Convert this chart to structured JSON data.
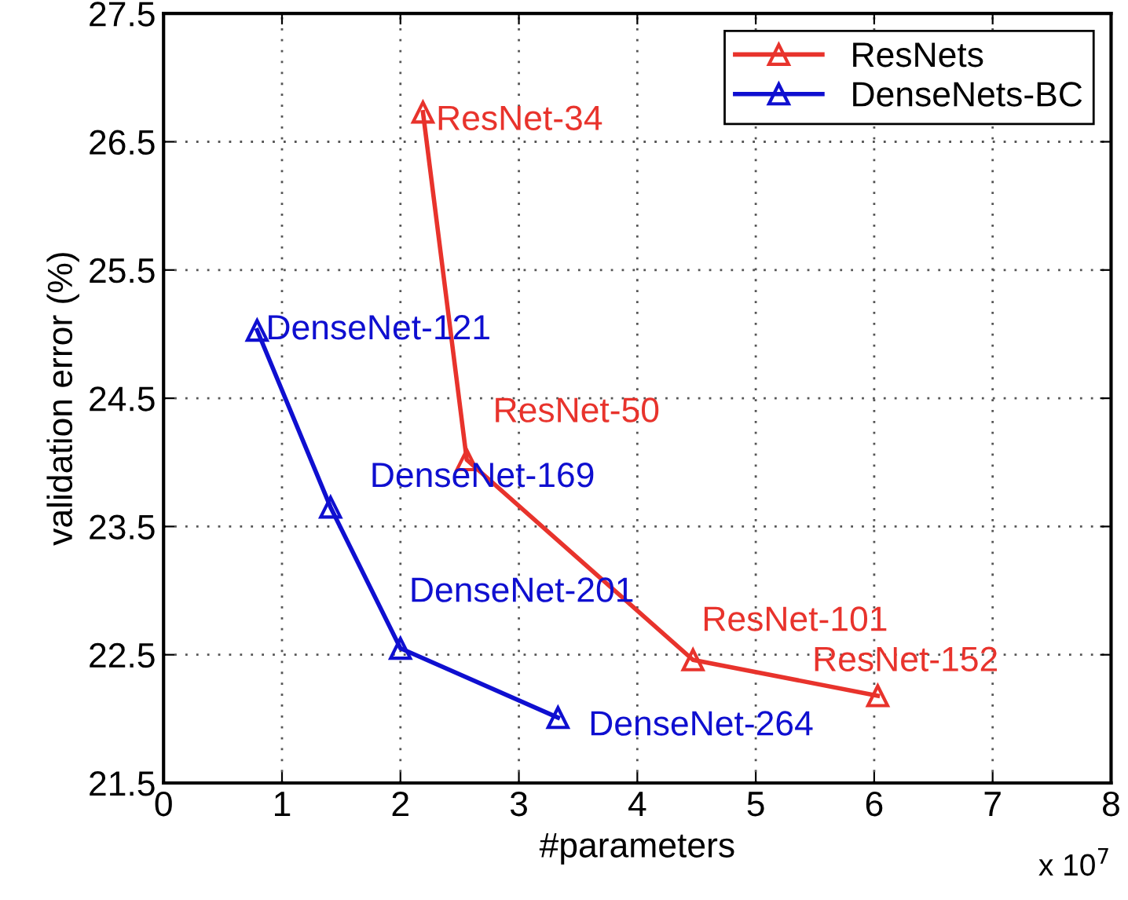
{
  "chart_data": {
    "type": "line",
    "xlabel": "#parameters",
    "ylabel": "validation error (%)",
    "series": [
      {
        "name": "ResNets",
        "color": "#e8332c",
        "x": [
          2.19,
          2.56,
          4.47,
          6.03
        ],
        "values": [
          26.73,
          24.02,
          22.46,
          22.18
        ]
      },
      {
        "name": "DenseNets-BC",
        "color": "#0f0fd0",
        "x": [
          0.79,
          1.41,
          2.0,
          3.33
        ],
        "values": [
          25.03,
          23.65,
          22.55,
          22.01
        ]
      }
    ],
    "xlim": [
      0,
      8
    ],
    "xticks": [
      0,
      1,
      2,
      3,
      4,
      5,
      6,
      7,
      8
    ],
    "ylim": [
      21.5,
      27.5
    ],
    "yticks": [
      21.5,
      22.5,
      23.5,
      24.5,
      25.5,
      26.5,
      27.5
    ],
    "grid": true,
    "legend": "top right",
    "marker": "triangle",
    "line_style": "solid",
    "annotations": [
      {
        "text": "ResNet-34",
        "x": 2.19,
        "y": 26.73
      },
      {
        "text": "ResNet-50",
        "x": 2.56,
        "y": 24.02
      },
      {
        "text": "ResNet-101",
        "x": 4.47,
        "y": 22.46
      },
      {
        "text": "ResNet-152",
        "x": 6.03,
        "y": 22.18
      },
      {
        "text": "DenseNet-121",
        "x": 0.79,
        "y": 25.03
      },
      {
        "text": "DenseNet-169",
        "x": 1.41,
        "y": 23.65
      },
      {
        "text": "DenseNet-201",
        "x": 2.0,
        "y": 22.55
      },
      {
        "text": "DenseNet-264",
        "x": 3.33,
        "y": 22.01
      },
      "x 10$^{7}$"
    ]
  }
}
